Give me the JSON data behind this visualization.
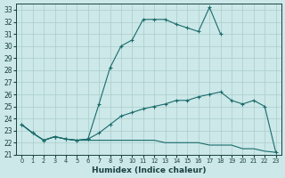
{
  "xlabel": "Humidex (Indice chaleur)",
  "background_color": "#cce8e8",
  "grid_color": "#aacccc",
  "line_color": "#1a6b6b",
  "xlim": [
    -0.5,
    23.5
  ],
  "ylim": [
    21,
    33.5
  ],
  "yticks": [
    21,
    22,
    23,
    24,
    25,
    26,
    27,
    28,
    29,
    30,
    31,
    32,
    33
  ],
  "xticks": [
    0,
    1,
    2,
    3,
    4,
    5,
    6,
    7,
    8,
    9,
    10,
    11,
    12,
    13,
    14,
    15,
    16,
    17,
    18,
    19,
    20,
    21,
    22,
    23
  ],
  "curve1_x": [
    0,
    1,
    2,
    3,
    4,
    5,
    6,
    7,
    8,
    9,
    10,
    11,
    12,
    13,
    14,
    15,
    16,
    17,
    18
  ],
  "curve1_y": [
    23.5,
    22.8,
    22.2,
    22.5,
    22.3,
    22.2,
    22.3,
    25.2,
    28.2,
    30.0,
    30.5,
    32.2,
    32.2,
    32.2,
    31.8,
    31.5,
    31.2,
    33.2,
    31.0
  ],
  "curve2_x": [
    0,
    1,
    2,
    3,
    4,
    5,
    6,
    7,
    8,
    9,
    10,
    11,
    12,
    13,
    14,
    15,
    16,
    17,
    18,
    19,
    20,
    21,
    22,
    23
  ],
  "curve2_y": [
    23.5,
    22.8,
    22.2,
    22.5,
    22.3,
    22.2,
    22.3,
    22.8,
    23.5,
    24.2,
    24.5,
    24.8,
    25.0,
    25.2,
    25.5,
    25.5,
    25.8,
    26.0,
    26.2,
    25.5,
    25.2,
    25.5,
    25.0,
    21.2
  ],
  "curve3_x": [
    0,
    1,
    2,
    3,
    4,
    5,
    6,
    7,
    8,
    9,
    10,
    11,
    12,
    13,
    14,
    15,
    16,
    17,
    18,
    19,
    20,
    21,
    22,
    23
  ],
  "curve3_y": [
    23.5,
    22.8,
    22.2,
    22.5,
    22.3,
    22.2,
    22.2,
    22.2,
    22.2,
    22.2,
    22.2,
    22.2,
    22.2,
    22.0,
    22.0,
    22.0,
    22.0,
    21.8,
    21.8,
    21.8,
    21.5,
    21.5,
    21.3,
    21.2
  ]
}
